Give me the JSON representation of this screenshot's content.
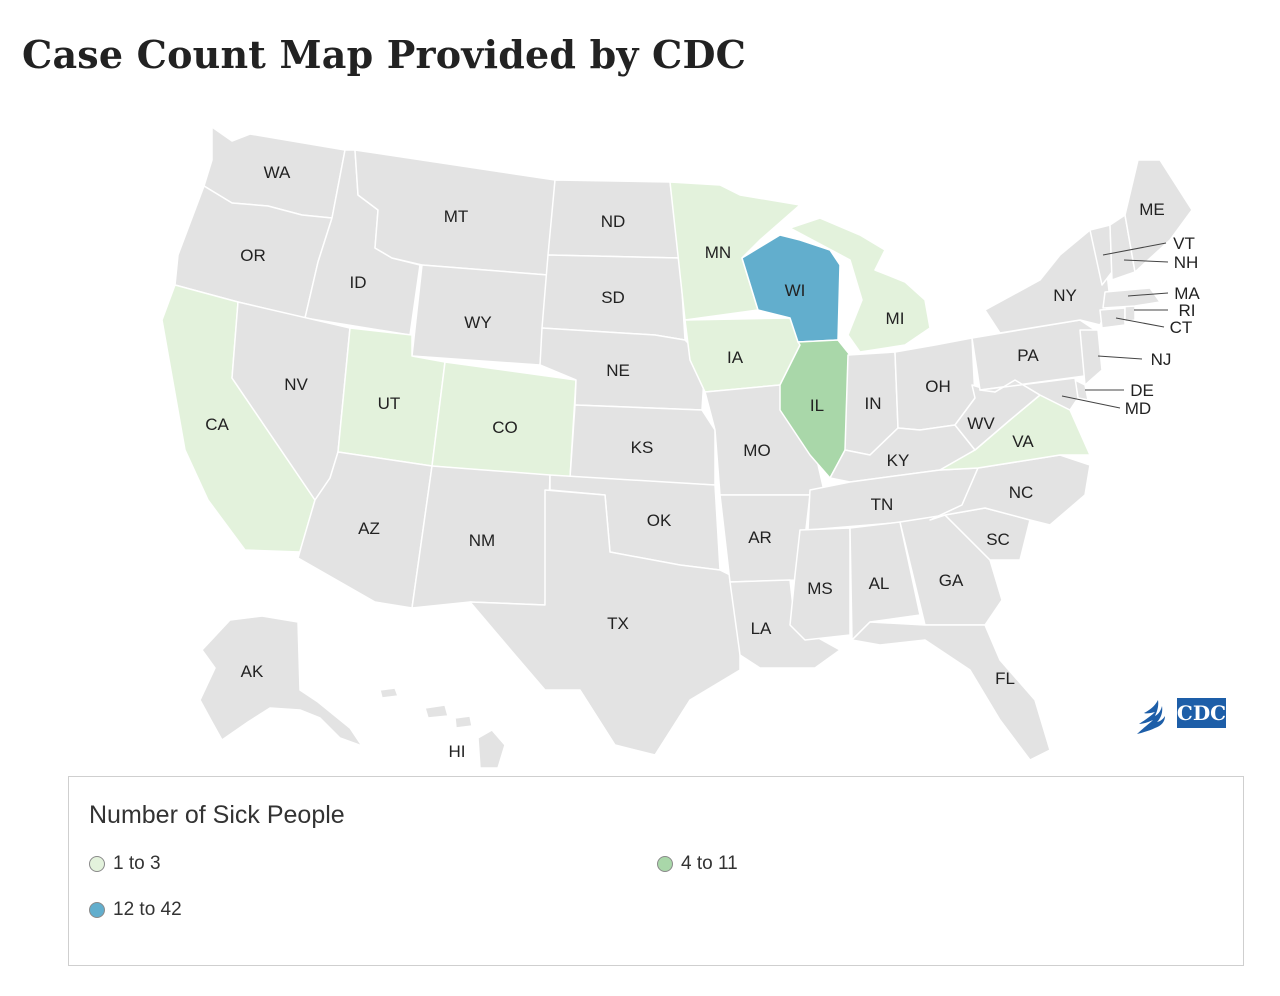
{
  "title": "Case Count Map Provided by CDC",
  "map": {
    "colors": {
      "none": "#e3e3e3",
      "low": "#e3f2dc",
      "mid": "#a9d7a9",
      "high": "#62aecd"
    },
    "states": [
      {
        "code": "WA",
        "level": "none"
      },
      {
        "code": "OR",
        "level": "none"
      },
      {
        "code": "CA",
        "level": "low"
      },
      {
        "code": "ID",
        "level": "none"
      },
      {
        "code": "NV",
        "level": "none"
      },
      {
        "code": "MT",
        "level": "none"
      },
      {
        "code": "WY",
        "level": "none"
      },
      {
        "code": "UT",
        "level": "low"
      },
      {
        "code": "CO",
        "level": "low"
      },
      {
        "code": "AZ",
        "level": "none"
      },
      {
        "code": "NM",
        "level": "none"
      },
      {
        "code": "ND",
        "level": "none"
      },
      {
        "code": "SD",
        "level": "none"
      },
      {
        "code": "NE",
        "level": "none"
      },
      {
        "code": "KS",
        "level": "none"
      },
      {
        "code": "OK",
        "level": "none"
      },
      {
        "code": "TX",
        "level": "none"
      },
      {
        "code": "MN",
        "level": "low"
      },
      {
        "code": "IA",
        "level": "low"
      },
      {
        "code": "MO",
        "level": "none"
      },
      {
        "code": "AR",
        "level": "none"
      },
      {
        "code": "LA",
        "level": "none"
      },
      {
        "code": "WI",
        "level": "high"
      },
      {
        "code": "IL",
        "level": "mid"
      },
      {
        "code": "MI",
        "level": "low"
      },
      {
        "code": "IN",
        "level": "none"
      },
      {
        "code": "OH",
        "level": "none"
      },
      {
        "code": "KY",
        "level": "none"
      },
      {
        "code": "TN",
        "level": "none"
      },
      {
        "code": "MS",
        "level": "none"
      },
      {
        "code": "AL",
        "level": "none"
      },
      {
        "code": "GA",
        "level": "none"
      },
      {
        "code": "FL",
        "level": "none"
      },
      {
        "code": "SC",
        "level": "none"
      },
      {
        "code": "NC",
        "level": "none"
      },
      {
        "code": "VA",
        "level": "low"
      },
      {
        "code": "WV",
        "level": "none"
      },
      {
        "code": "PA",
        "level": "none"
      },
      {
        "code": "NY",
        "level": "none"
      },
      {
        "code": "NJ",
        "level": "none"
      },
      {
        "code": "DE",
        "level": "none"
      },
      {
        "code": "MD",
        "level": "none"
      },
      {
        "code": "CT",
        "level": "none"
      },
      {
        "code": "RI",
        "level": "none"
      },
      {
        "code": "MA",
        "level": "none"
      },
      {
        "code": "VT",
        "level": "none"
      },
      {
        "code": "NH",
        "level": "none"
      },
      {
        "code": "ME",
        "level": "none"
      },
      {
        "code": "AK",
        "level": "none"
      },
      {
        "code": "HI",
        "level": "none"
      }
    ]
  },
  "legend": {
    "title": "Number of Sick People",
    "items": [
      {
        "label": "1 to 3",
        "color": "#e3f2dc"
      },
      {
        "label": "4 to 11",
        "color": "#a9d7a9"
      },
      {
        "label": "12 to 42",
        "color": "#62aecd"
      }
    ]
  },
  "logo": {
    "text": "CDC",
    "icon": "hhs-eagle-icon",
    "color": "#1d5ea8"
  }
}
